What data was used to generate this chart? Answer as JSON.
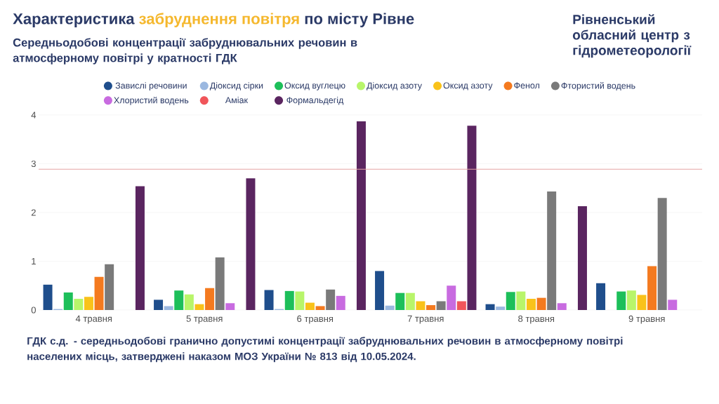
{
  "chart_data": {
    "type": "bar",
    "title": "Характеристика **забруднення повітря** по місту Рівне",
    "subtitle": "Середньодобові концентрації забруднювальних речовин в атмосферному повітрі у кратності ГДК",
    "categories": [
      "4 травня",
      "5 травня",
      "6 травня",
      "7 травня",
      "8 травня",
      "9 травня"
    ],
    "series": [
      {
        "name": "Завислі речовини",
        "color": "#1f4e8c",
        "values": [
          0.52,
          0.21,
          0.41,
          0.8,
          0.12,
          0.55
        ]
      },
      {
        "name": "Діоксид сірки",
        "color": "#9bb8e0",
        "values": [
          0.02,
          0.08,
          0.02,
          0.09,
          0.07,
          null
        ]
      },
      {
        "name": "Оксид вуглецю",
        "color": "#1dbf5a",
        "values": [
          0.36,
          0.4,
          0.39,
          0.35,
          0.37,
          0.38
        ]
      },
      {
        "name": "Діоксид азоту",
        "color": "#b8f56a",
        "values": [
          0.23,
          0.32,
          0.38,
          0.35,
          0.38,
          0.4
        ]
      },
      {
        "name": "Оксид азоту",
        "color": "#f9c21a",
        "values": [
          0.27,
          0.12,
          0.15,
          0.18,
          0.23,
          0.31
        ]
      },
      {
        "name": "Фенол",
        "color": "#f47a1f",
        "values": [
          0.68,
          0.45,
          0.08,
          0.1,
          0.25,
          0.9
        ]
      },
      {
        "name": "Фтористий водень",
        "color": "#7a7a7a",
        "values": [
          0.94,
          1.08,
          0.42,
          0.18,
          2.43,
          2.3
        ]
      },
      {
        "name": "Хлористий водень",
        "color": "#c86be0",
        "values": [
          null,
          0.14,
          0.29,
          0.5,
          0.14,
          0.21
        ]
      },
      {
        "name": "Аміак",
        "color": "#f0555a",
        "values": [
          null,
          null,
          null,
          0.18,
          null,
          null
        ]
      },
      {
        "name": "Формальдегід",
        "color": "#5a2560",
        "values": [
          2.54,
          2.7,
          3.87,
          3.78,
          2.13,
          null
        ]
      }
    ],
    "ylim": [
      0,
      4
    ],
    "yticks": [
      0,
      1,
      2,
      3,
      4
    ],
    "grid": "y",
    "legend": "top",
    "ref_lines": [
      {
        "axis": "y",
        "value": 2.89,
        "color": "#e6a3a3"
      }
    ],
    "annotations": [
      "ГДК с.д. - середньодобові гранично допустимі концентрації забруднювальних речовин в атмосферному повітрі населених місць, затверджені наказом МОЗ України № 813 від 10.05.2024.",
      "Рівненський обласний центр з гідрометеорології"
    ]
  }
}
